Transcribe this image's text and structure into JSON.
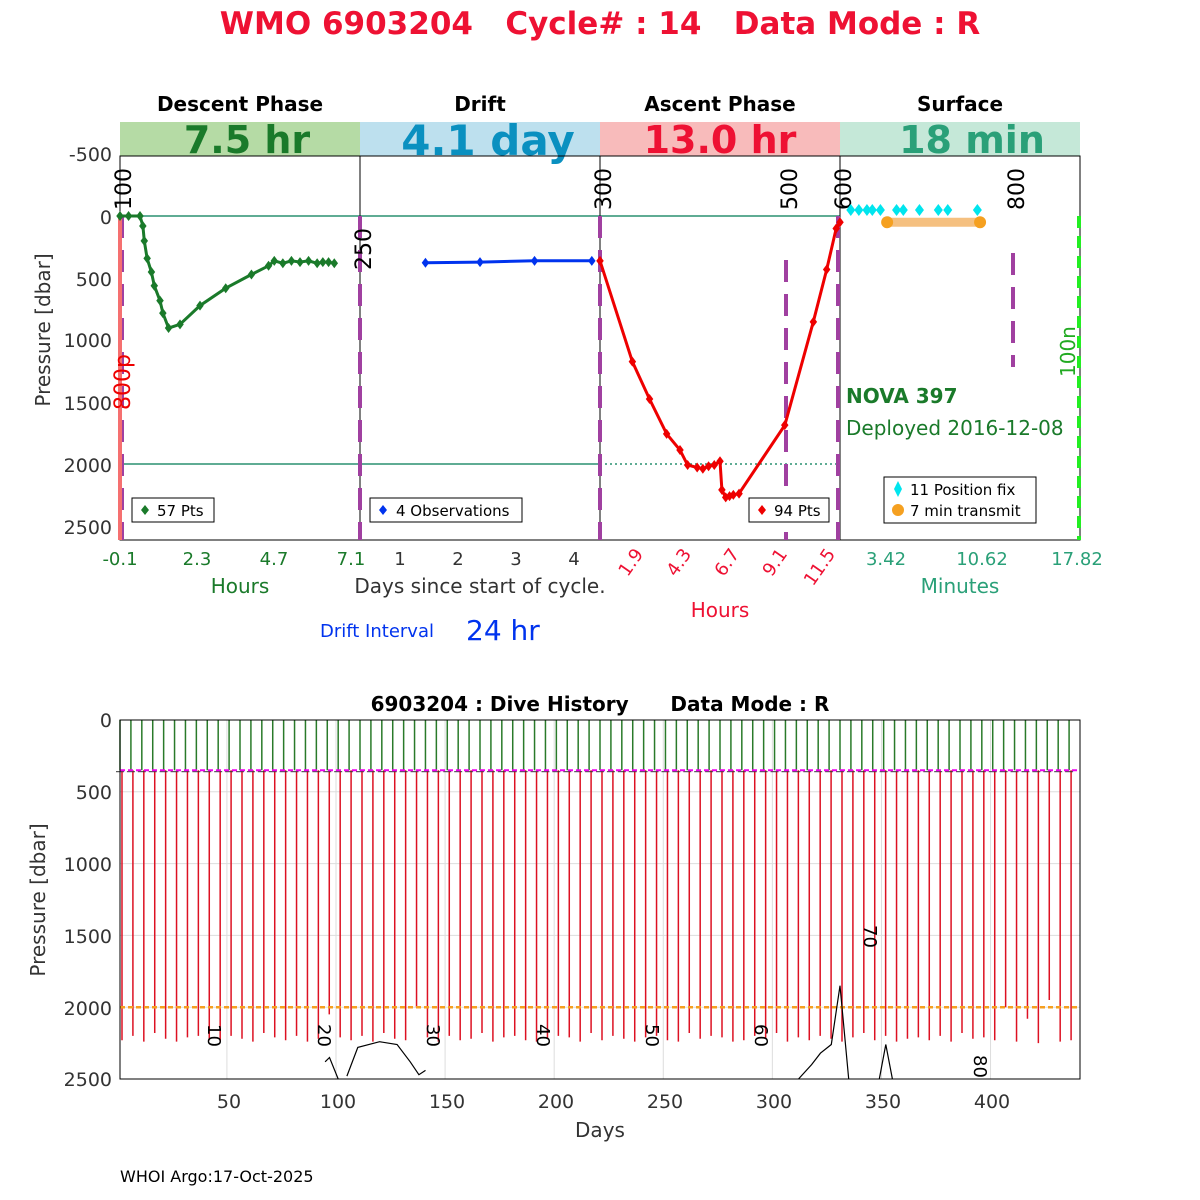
{
  "title": "WMO 6903204   Cycle# : 14   Data Mode : R",
  "footer": "WHOI Argo:17-Oct-2025",
  "colors": {
    "title": "#ee1133",
    "descent": "#1a7a2a",
    "drift": "#0033ee",
    "ascent": "#ee0000",
    "surface": "#2aa078",
    "divider": "#a040a0",
    "position_fix": "#00e5ee",
    "transmit": "#f5a020"
  },
  "top_panel": {
    "ylabel": "Pressure [dbar]",
    "yticks": [
      "-500",
      "0",
      "500",
      "1000",
      "1500",
      "2000",
      "2500"
    ],
    "phases": [
      {
        "name": "Descent Phase",
        "duration": "7.5 hr",
        "band_color": "#b5dba5",
        "text_color": "#1a7a2a"
      },
      {
        "name": "Drift",
        "duration": "4.1 day",
        "band_color": "#bde0ee",
        "text_color": "#0a90c0"
      },
      {
        "name": "Ascent Phase",
        "duration": "13.0 hr",
        "band_color": "#f8bbbb",
        "text_color": "#ee1133"
      },
      {
        "name": "Surface",
        "duration": "18 min",
        "band_color": "#c5e8d8",
        "text_color": "#2aa078"
      }
    ],
    "depth_marks": [
      "100",
      "250",
      "300",
      "500",
      "600",
      "800"
    ],
    "side_labels": {
      "left": "800p",
      "right": "100n"
    },
    "legends": {
      "descent": "57 Pts",
      "drift": "4 Observations",
      "ascent": "94 Pts",
      "surface_fix": "11 Position fix",
      "surface_tx": "7 min transmit"
    },
    "descent_xticks": [
      "-0.1",
      "2.3",
      "4.7",
      "7.1"
    ],
    "descent_xlabel": "Hours",
    "drift_xticks": [
      "1",
      "2",
      "3",
      "4"
    ],
    "drift_xlabel": "Days since start of cycle.",
    "ascent_xticks": [
      "1.9",
      "4.3",
      "6.7",
      "9.1",
      "11.5"
    ],
    "ascent_xlabel": "Hours",
    "surface_xticks": [
      "3.42",
      "10.62",
      "17.82"
    ],
    "surface_xlabel": "Minutes",
    "float_name": "NOVA 397",
    "deployed": "Deployed 2016-12-08",
    "drift_interval_label": "Drift Interval",
    "drift_interval_value": "24 hr"
  },
  "bottom_panel": {
    "title": "6903204 : Dive History      Data Mode : R",
    "ylabel": "Pressure [dbar]",
    "xlabel": "Days",
    "yticks": [
      "0",
      "500",
      "1000",
      "1500",
      "2000",
      "2500"
    ],
    "xticks": [
      "50",
      "100",
      "150",
      "200",
      "250",
      "300",
      "350",
      "400"
    ],
    "cycle_labels": [
      "10",
      "20",
      "30",
      "40",
      "50",
      "60",
      "70",
      "80"
    ]
  },
  "chart_data": [
    {
      "type": "line",
      "title": "Descent Phase",
      "xlabel": "Hours",
      "ylabel": "Pressure [dbar]",
      "xlim": [
        -0.1,
        8.3
      ],
      "ylim": [
        2600,
        -600
      ],
      "series": [
        {
          "name": "57 Pts",
          "x": [
            -0.1,
            0.2,
            0.6,
            0.7,
            0.75,
            0.85,
            1.0,
            1.1,
            1.3,
            1.4,
            1.6,
            2.0,
            2.7,
            3.6,
            4.5,
            5.1,
            5.3,
            5.6,
            5.9,
            6.2,
            6.5,
            6.8,
            7.0,
            7.2,
            7.4
          ],
          "y": [
            0,
            0,
            0,
            80,
            200,
            340,
            450,
            560,
            680,
            780,
            900,
            870,
            720,
            580,
            470,
            400,
            360,
            380,
            360,
            370,
            360,
            380,
            370,
            370,
            380
          ]
        }
      ]
    },
    {
      "type": "line",
      "title": "Drift",
      "xlabel": "Days since start of cycle.",
      "ylabel": "Pressure [dbar]",
      "xlim": [
        0.1,
        4.5
      ],
      "ylim": [
        2600,
        -600
      ],
      "series": [
        {
          "name": "4 Observations",
          "x": [
            1.3,
            2.3,
            3.3,
            4.35
          ],
          "y": [
            375,
            370,
            360,
            360
          ]
        }
      ]
    },
    {
      "type": "line",
      "title": "Ascent Phase",
      "xlabel": "Hours",
      "ylabel": "Pressure [dbar]",
      "xlim": [
        0,
        12.6
      ],
      "ylim": [
        2600,
        -600
      ],
      "series": [
        {
          "name": "94 Pts",
          "x": [
            0,
            1.7,
            2.6,
            3.5,
            4.2,
            4.6,
            5.1,
            5.4,
            5.7,
            6.0,
            6.3,
            6.4,
            6.6,
            6.8,
            7.0,
            7.3,
            9.7,
            11.2,
            11.9,
            12.4,
            12.6
          ],
          "y": [
            360,
            1170,
            1470,
            1750,
            1880,
            2000,
            2020,
            2030,
            2010,
            2000,
            1970,
            2200,
            2260,
            2250,
            2240,
            2230,
            1680,
            850,
            430,
            100,
            50
          ]
        }
      ]
    },
    {
      "type": "scatter",
      "title": "Surface",
      "xlabel": "Minutes",
      "ylabel": "Pressure [dbar]",
      "xlim": [
        0,
        17.82
      ],
      "ylim": [
        2600,
        -600
      ],
      "series": [
        {
          "name": "11 Position fix",
          "x": [
            0.8,
            1.4,
            2.0,
            2.4,
            3.0,
            4.2,
            4.7,
            5.9,
            7.3,
            8.0,
            10.2
          ],
          "y": [
            -50,
            -50,
            -50,
            -50,
            -50,
            -50,
            -50,
            -50,
            -50,
            -50,
            -50
          ]
        },
        {
          "name": "7 min transmit",
          "x": [
            3.5,
            10.4
          ],
          "y": [
            50,
            50
          ]
        }
      ]
    },
    {
      "type": "bar",
      "title": "6903204 : Dive History      Data Mode : R",
      "xlabel": "Days",
      "ylabel": "Pressure [dbar]",
      "xlim": [
        1,
        441
      ],
      "ylim": [
        2500,
        0
      ],
      "series": [
        {
          "name": "Profile depth",
          "x": [
            1,
            6,
            11,
            16,
            21,
            26,
            31,
            36,
            41,
            46,
            51,
            56,
            61,
            66,
            71,
            76,
            81,
            86,
            91,
            96,
            101,
            106,
            111,
            116,
            121,
            126,
            131,
            136,
            141,
            146,
            151,
            156,
            161,
            166,
            171,
            176,
            181,
            186,
            191,
            196,
            201,
            206,
            211,
            216,
            221,
            226,
            231,
            236,
            241,
            246,
            251,
            256,
            261,
            266,
            271,
            276,
            281,
            286,
            291,
            296,
            301,
            306,
            311,
            316,
            321,
            326,
            331,
            336,
            341,
            346,
            351,
            356,
            361,
            366,
            371,
            376,
            381,
            386,
            391,
            396,
            401,
            406,
            411,
            416,
            421,
            426,
            431,
            436
          ],
          "y": [
            2230,
            2200,
            2240,
            2180,
            2220,
            2240,
            2210,
            2200,
            2230,
            2240,
            2200,
            2220,
            2240,
            2180,
            2210,
            2230,
            2200,
            2240,
            2220,
            2050,
            2210,
            2230,
            2200,
            2240,
            2180,
            2220,
            2230,
            2000,
            2210,
            2240,
            2200,
            2230,
            2220,
            2180,
            2240,
            2210,
            2200,
            2230,
            2240,
            2220,
            2200,
            2210,
            2240,
            2180,
            2230,
            2200,
            2220,
            2240,
            2210,
            2200,
            2230,
            2240,
            2180,
            2220,
            2200,
            2210,
            2240,
            2230,
            2200,
            2220,
            2180,
            2240,
            2210,
            2230,
            2200,
            2220,
            2240,
            2210,
            2180,
            2230,
            2200,
            2240,
            2220,
            2210,
            2230,
            2200,
            2240,
            2180,
            2220,
            2210,
            2230,
            2000,
            2240,
            2080,
            2250,
            1950,
            2240,
            2230
          ]
        },
        {
          "name": "Park depth",
          "x": [
            1,
            441
          ],
          "y": [
            350,
            350
          ]
        },
        {
          "name": "Target depth",
          "x": [
            1,
            441
          ],
          "y": [
            2000,
            2000
          ]
        },
        {
          "name": "Bathymetry",
          "x": [
            95,
            97,
            101,
            105,
            110,
            120,
            128,
            134,
            138,
            141,
            312,
            318,
            322,
            327,
            331,
            335,
            349,
            352,
            355
          ],
          "y": [
            2380,
            2350,
            2500,
            2480,
            2280,
            2240,
            2260,
            2380,
            2470,
            2440,
            2500,
            2400,
            2320,
            2260,
            1850,
            2500,
            2500,
            2260,
            2500
          ]
        }
      ]
    }
  ]
}
